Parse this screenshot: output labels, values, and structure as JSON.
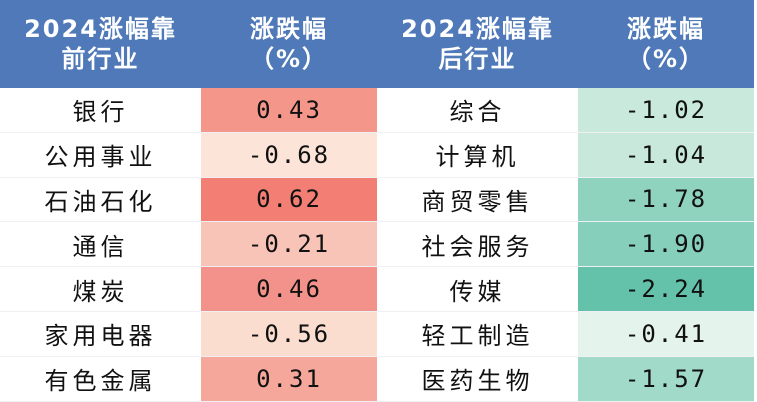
{
  "header": {
    "col1_line1": "2024涨幅靠",
    "col1_line2": "前行业",
    "col2_line1": "涨跌幅",
    "col2_line2": "（%）",
    "col3_line1": "2024涨幅靠",
    "col3_line2": "后行业",
    "col4_line1": "涨跌幅",
    "col4_line2": "（%）"
  },
  "rows": [
    {
      "top_industry": "银行",
      "top_change": "0.43",
      "top_color": "#f4978a",
      "bottom_industry": "综合",
      "bottom_change": "-1.02",
      "bottom_color": "#c9e9dc"
    },
    {
      "top_industry": "公用事业",
      "top_change": "-0.68",
      "top_color": "#fce5d8",
      "bottom_industry": "计算机",
      "bottom_change": "-1.04",
      "bottom_color": "#c7e8db"
    },
    {
      "top_industry": "石油石化",
      "top_change": "0.62",
      "top_color": "#f27e74",
      "bottom_industry": "商贸零售",
      "bottom_change": "-1.78",
      "bottom_color": "#8fd3bf"
    },
    {
      "top_industry": "通信",
      "top_change": "-0.21",
      "top_color": "#f8c4b8",
      "bottom_industry": "社会服务",
      "bottom_change": "-1.90",
      "bottom_color": "#86d0bb"
    },
    {
      "top_industry": "煤炭",
      "top_change": "0.46",
      "top_color": "#f3928a",
      "bottom_industry": "传媒",
      "bottom_change": "-2.24",
      "bottom_color": "#63c2a9"
    },
    {
      "top_industry": "家用电器",
      "top_change": "-0.56",
      "top_color": "#fbddd0",
      "bottom_industry": "轻工制造",
      "bottom_change": "-0.41",
      "bottom_color": "#e4f3ec"
    },
    {
      "top_industry": "有色金属",
      "top_change": "0.31",
      "top_color": "#f5a79b",
      "bottom_industry": "医药生物",
      "bottom_change": "-1.57",
      "bottom_color": "#a1dac8"
    }
  ]
}
